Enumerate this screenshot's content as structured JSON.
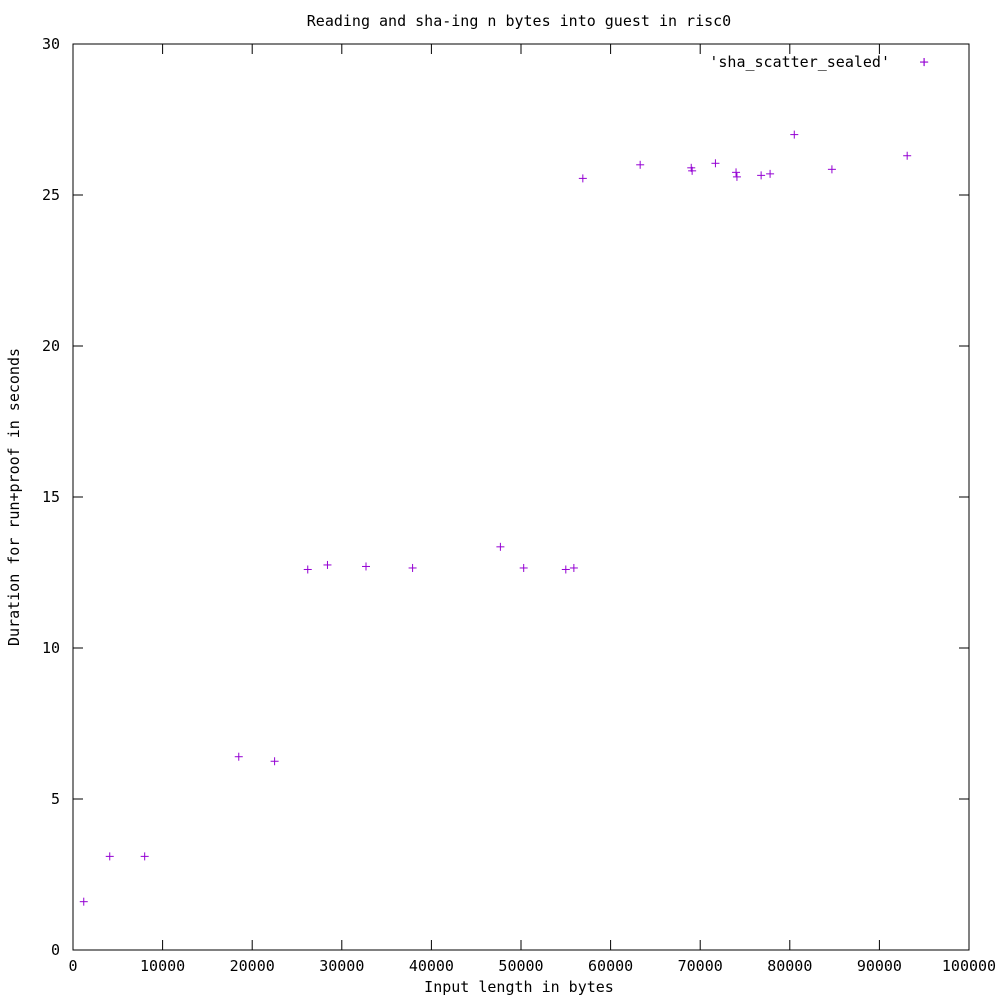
{
  "chart_data": {
    "type": "scatter",
    "title": "Reading and sha-ing n bytes into guest in risc0",
    "xlabel": "Input length in bytes",
    "ylabel": "Duration for run+proof in seconds",
    "xlim": [
      0,
      100000
    ],
    "ylim": [
      0,
      30
    ],
    "x_ticks": [
      0,
      10000,
      20000,
      30000,
      40000,
      50000,
      60000,
      70000,
      80000,
      90000,
      100000
    ],
    "y_ticks": [
      0,
      5,
      10,
      15,
      20,
      25,
      30
    ],
    "grid": false,
    "legend_position": "top-right",
    "series": [
      {
        "name": "'sha_scatter_sealed'",
        "color": "#9400d3",
        "marker": "plus",
        "points": [
          {
            "x": 1200,
            "y": 1.6
          },
          {
            "x": 4100,
            "y": 3.1
          },
          {
            "x": 8000,
            "y": 3.1
          },
          {
            "x": 18500,
            "y": 6.4
          },
          {
            "x": 22500,
            "y": 6.25
          },
          {
            "x": 26200,
            "y": 12.6
          },
          {
            "x": 28400,
            "y": 12.75
          },
          {
            "x": 32700,
            "y": 12.7
          },
          {
            "x": 37900,
            "y": 12.65
          },
          {
            "x": 47700,
            "y": 13.35
          },
          {
            "x": 50300,
            "y": 12.65
          },
          {
            "x": 55000,
            "y": 12.6
          },
          {
            "x": 55900,
            "y": 12.65
          },
          {
            "x": 56900,
            "y": 25.55
          },
          {
            "x": 63300,
            "y": 26.0
          },
          {
            "x": 69000,
            "y": 25.9
          },
          {
            "x": 69100,
            "y": 25.8
          },
          {
            "x": 71700,
            "y": 26.05
          },
          {
            "x": 74000,
            "y": 25.75
          },
          {
            "x": 74100,
            "y": 25.6
          },
          {
            "x": 76800,
            "y": 25.65
          },
          {
            "x": 77800,
            "y": 25.7
          },
          {
            "x": 80500,
            "y": 27.0
          },
          {
            "x": 84700,
            "y": 25.85
          },
          {
            "x": 93100,
            "y": 26.3
          },
          {
            "x": 95000,
            "y": 29.4
          }
        ]
      }
    ]
  }
}
